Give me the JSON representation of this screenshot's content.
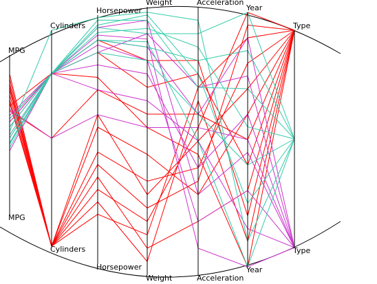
{
  "chart_data": {
    "type": "parallel",
    "dimensions": [
      "MPG",
      "Cylinders",
      "Horsepower",
      "Weight",
      "Acceleration",
      "Year",
      "Type"
    ],
    "series": [
      {
        "color": "#ff0000",
        "values": [
          [
            0.85,
            0.0,
            0.3,
            0.2,
            0.55,
            1.0,
            1
          ],
          [
            0.8,
            0.0,
            0.2,
            0.15,
            0.7,
            0.9,
            1
          ],
          [
            0.75,
            0.0,
            0.45,
            0.35,
            0.4,
            0.8,
            1
          ],
          [
            0.7,
            0.0,
            0.6,
            0.3,
            0.5,
            0.7,
            1
          ],
          [
            0.78,
            0.0,
            0.55,
            0.45,
            0.3,
            0.6,
            1
          ],
          [
            0.65,
            0.5,
            0.7,
            0.6,
            0.6,
            0.5,
            1
          ],
          [
            0.6,
            0.8,
            0.85,
            0.7,
            0.75,
            0.4,
            1
          ],
          [
            0.72,
            0.0,
            0.35,
            0.1,
            0.2,
            0.3,
            1
          ],
          [
            0.68,
            0.8,
            0.9,
            0.8,
            0.8,
            0.2,
            1
          ],
          [
            0.82,
            0.0,
            0.25,
            0.05,
            0.65,
            0.1,
            1
          ],
          [
            0.58,
            0.8,
            0.75,
            0.55,
            0.45,
            0.0,
            1
          ],
          [
            0.88,
            0.0,
            0.4,
            0.25,
            0.35,
            0.95,
            1
          ]
        ]
      },
      {
        "color": "#cc33cc",
        "values": [
          [
            0.55,
            0.8,
            0.9,
            0.85,
            0.6,
            0.9,
            0
          ],
          [
            0.45,
            0.8,
            0.85,
            0.9,
            0.7,
            0.75,
            0
          ],
          [
            0.62,
            0.8,
            0.8,
            0.75,
            0.4,
            0.6,
            0
          ],
          [
            0.5,
            0.8,
            0.95,
            0.95,
            0.3,
            0.45,
            0
          ],
          [
            0.4,
            0.8,
            0.88,
            0.8,
            0.2,
            0.3,
            0
          ],
          [
            0.58,
            0.8,
            0.7,
            0.65,
            0.5,
            0.15,
            0
          ],
          [
            0.48,
            0.8,
            0.92,
            0.88,
            0.1,
            0.0,
            0
          ],
          [
            0.66,
            0.5,
            0.6,
            0.55,
            0.55,
            0.5,
            0
          ]
        ]
      },
      {
        "color": "#33ccaa",
        "values": [
          [
            0.45,
            0.8,
            0.95,
            0.9,
            0.9,
            1.0,
            0.5
          ],
          [
            0.5,
            0.8,
            0.9,
            0.85,
            0.8,
            0.85,
            0.5
          ],
          [
            0.55,
            0.8,
            0.98,
            0.95,
            0.7,
            0.7,
            0.5
          ],
          [
            0.42,
            0.8,
            0.93,
            0.92,
            0.85,
            0.55,
            0.5
          ],
          [
            0.6,
            0.8,
            0.85,
            0.8,
            0.6,
            0.4,
            0.5
          ],
          [
            0.48,
            0.8,
            0.96,
            0.97,
            0.75,
            0.25,
            0.5
          ],
          [
            0.52,
            1.0,
            0.99,
            0.98,
            0.95,
            0.1,
            0.5
          ],
          [
            0.44,
            0.8,
            0.9,
            0.87,
            0.5,
            0.0,
            0.5
          ]
        ]
      }
    ]
  }
}
